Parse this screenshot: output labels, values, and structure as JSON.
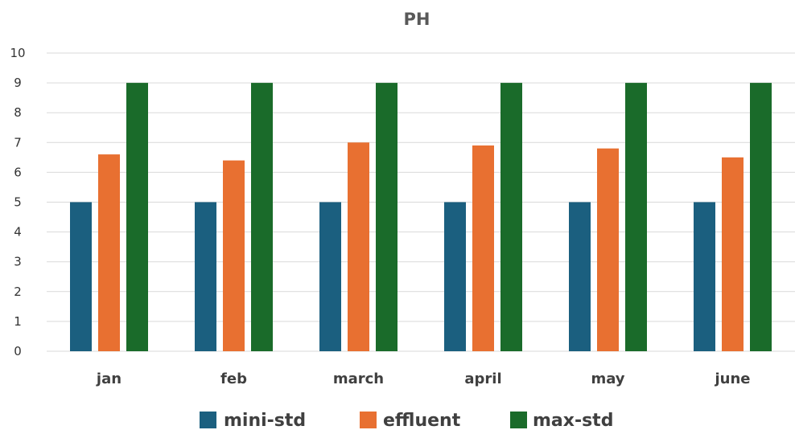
{
  "chart_data": {
    "type": "bar",
    "title": "PH",
    "categories": [
      "jan",
      "feb",
      "march",
      "april",
      "may",
      "june"
    ],
    "series": [
      {
        "name": "mini-std",
        "values": [
          5,
          5,
          5,
          5,
          5,
          5
        ],
        "color": "#1b5f7f"
      },
      {
        "name": "effluent",
        "values": [
          6.6,
          6.4,
          7.0,
          6.9,
          6.8,
          6.5
        ],
        "color": "#e87031"
      },
      {
        "name": "max-std",
        "values": [
          9,
          9,
          9,
          9,
          9,
          9
        ],
        "color": "#1a6b2a"
      }
    ],
    "yticks": [
      "0",
      "1",
      "2",
      "3",
      "4",
      "5",
      "6",
      "7",
      "8",
      "9",
      "10"
    ],
    "ylim": [
      0,
      10
    ],
    "grid": true,
    "legend_position": "bottom"
  }
}
